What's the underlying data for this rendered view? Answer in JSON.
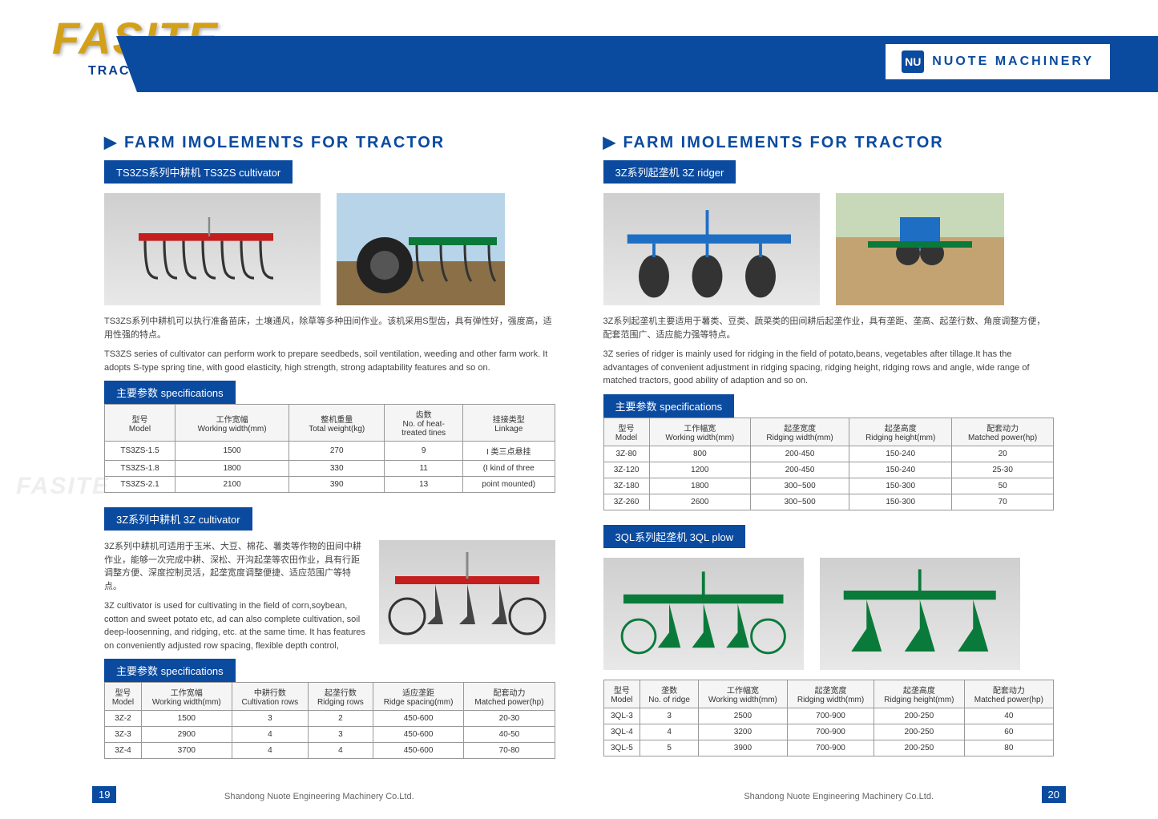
{
  "logo": {
    "main": "FASITE",
    "sub": "TRACTOR"
  },
  "company": {
    "icon": "NU",
    "name": "NUOTE   MACHINERY"
  },
  "watermark": "FASITE",
  "left": {
    "title": "FARM  IMOLEMENTS  FOR  TRACTOR",
    "section1": {
      "subtitle": "TS3ZS系列中耕机 TS3ZS cultivator",
      "desc_cn": "TS3ZS系列中耕机可以执行准备苗床，土壤通风，除草等多种田间作业。该机采用S型齿，具有弹性好，强度高，适用性强的特点。",
      "desc_en": "TS3ZS series of cultivator can perform work to prepare seedbeds, soil ventilation, weeding and other farm work. It adopts S-type spring tine, with good elasticity, high strength, strong adaptability features and so on.",
      "spec_label": "主要参数 specifications",
      "headers": [
        "型号\nModel",
        "工作宽幅\nWorking width(mm)",
        "整机重量\nTotal weight(kg)",
        "齿数\nNo. of heat-\ntreated tines",
        "挂接类型\nLinkage"
      ],
      "rows": [
        [
          "TS3ZS-1.5",
          "1500",
          "270",
          "9",
          "I 类三点悬挂"
        ],
        [
          "TS3ZS-1.8",
          "1800",
          "330",
          "11",
          "(I kind of three"
        ],
        [
          "TS3ZS-2.1",
          "2100",
          "390",
          "13",
          "point mounted)"
        ]
      ]
    },
    "section2": {
      "subtitle": "3Z系列中耕机 3Z cultivator",
      "desc_cn": "3Z系列中耕机可适用于玉米、大豆、棉花、薯类等作物的田间中耕作业，能够一次完成中耕、深松、开沟起垄等农田作业，具有行距调整方便、深度控制灵活，起垄宽度调整便捷、适应范围广等特点。",
      "desc_en": "3Z cultivator is used for cultivating in the field of corn,soybean, cotton and sweet potato etc, ad can also complete cultivation, soil deep-loosenning, and ridging, etc. at the same time. It has features on conveniently adjusted row spacing, flexible depth control,",
      "spec_label": "主要参数 specifications",
      "headers": [
        "型号\nModel",
        "工作宽幅\nWorking width(mm)",
        "中耕行数\nCultivation rows",
        "起垄行数\nRidging rows",
        "适应垄距\nRidge spacing(mm)",
        "配套动力\nMatched power(hp)"
      ],
      "rows": [
        [
          "3Z-2",
          "1500",
          "3",
          "2",
          "450-600",
          "20-30"
        ],
        [
          "3Z-3",
          "2900",
          "4",
          "3",
          "450-600",
          "40-50"
        ],
        [
          "3Z-4",
          "3700",
          "4",
          "4",
          "450-600",
          "70-80"
        ]
      ]
    }
  },
  "right": {
    "title": "FARM  IMOLEMENTS  FOR  TRACTOR",
    "section1": {
      "subtitle": "3Z系列起垄机 3Z ridger",
      "desc_cn": "3Z系列起垄机主要适用于薯类、豆类、蔬菜类的田间耕后起垄作业，具有垄距、垄高、起垄行数、角度调整方便，配套范围广、适应能力强等特点。",
      "desc_en": "3Z series of ridger is mainly used for ridging in the field of potato,beans, vegetables after tillage.It has the advantages of convenient adjustment in ridging spacing, ridging height, ridging rows and angle, wide range of matched tractors, good ability of adaption and so on.",
      "spec_label": "主要参数 specifications",
      "headers": [
        "型号\nModel",
        "工作幅宽\nWorking width(mm)",
        "起垄宽度\nRidging width(mm)",
        "起垄高度\nRidging height(mm)",
        "配套动力\nMatched power(hp)"
      ],
      "rows": [
        [
          "3Z-80",
          "800",
          "200-450",
          "150-240",
          "20"
        ],
        [
          "3Z-120",
          "1200",
          "200-450",
          "150-240",
          "25-30"
        ],
        [
          "3Z-180",
          "1800",
          "300~500",
          "150-300",
          "50"
        ],
        [
          "3Z-260",
          "2600",
          "300~500",
          "150-300",
          "70"
        ]
      ]
    },
    "section2": {
      "subtitle": "3QL系列起垄机 3QL plow",
      "headers": [
        "型号\nModel",
        "垄数\nNo. of ridge",
        "工作幅宽\nWorking width(mm)",
        "起垄宽度\nRidging width(mm)",
        "起垄高度\nRidging height(mm)",
        "配套动力\nMatched power(hp)"
      ],
      "rows": [
        [
          "3QL-3",
          "3",
          "2500",
          "700-900",
          "200-250",
          "40"
        ],
        [
          "3QL-4",
          "4",
          "3200",
          "700-900",
          "200-250",
          "60"
        ],
        [
          "3QL-5",
          "5",
          "3900",
          "700-900",
          "200-250",
          "80"
        ]
      ]
    }
  },
  "footer": "Shandong Nuote Engineering Machinery Co.Ltd.",
  "page_left": "19",
  "page_right": "20",
  "colors": {
    "primary": "#0a4a9f",
    "gold": "#d4a017",
    "red_impl": "#c41e1e",
    "green_impl": "#0a7a3a",
    "blue_impl": "#1e6fc4"
  }
}
